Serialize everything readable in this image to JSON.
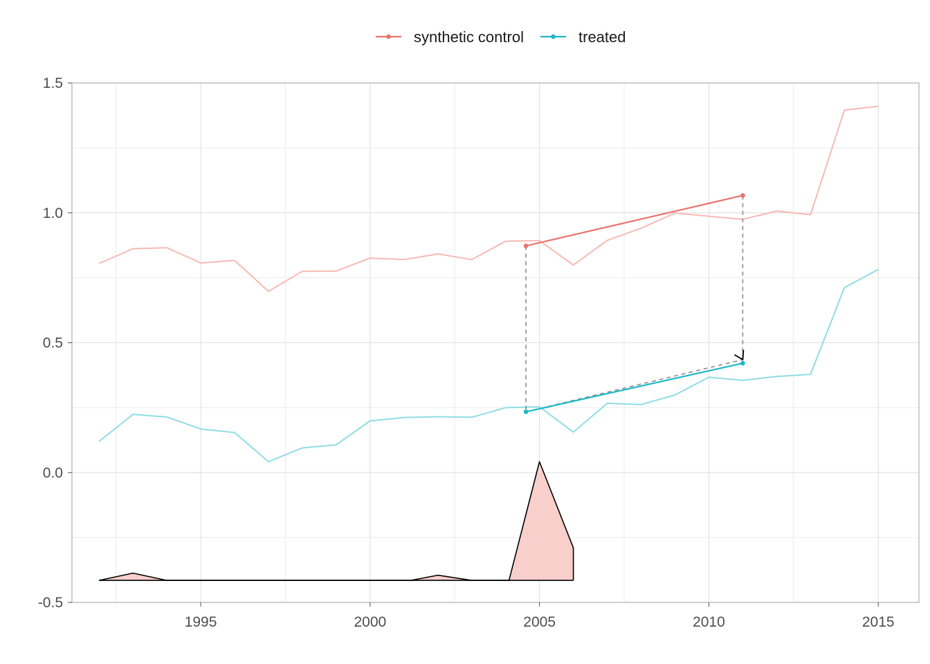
{
  "chart_data": {
    "type": "line",
    "xlim": [
      1991.2,
      2016.2
    ],
    "ylim": [
      -0.5,
      1.5
    ],
    "x_ticks": [
      1995,
      2000,
      2005,
      2010,
      2015
    ],
    "x_tick_labels": [
      "1995",
      "2000",
      "2005",
      "2010",
      "2015"
    ],
    "y_ticks": [
      -0.5,
      0.0,
      0.5,
      1.0,
      1.5
    ],
    "y_tick_labels": [
      "-0.5",
      "0.0",
      "0.5",
      "1.0",
      "1.5"
    ],
    "grid": true,
    "legend": {
      "position": "top",
      "entries": [
        {
          "label": "synthetic control",
          "color": "#e8736c"
        },
        {
          "label": "treated",
          "color": "#1fb7c6"
        }
      ]
    },
    "series": [
      {
        "name": "synthetic control",
        "color": "#f8b9b4",
        "x": [
          1992,
          1993,
          1994,
          1995,
          1996,
          1997,
          1998,
          1999,
          2000,
          2001,
          2002,
          2003,
          2004,
          2005,
          2006,
          2007,
          2008,
          2009,
          2010,
          2011,
          2012,
          2013,
          2014,
          2015
        ],
        "values": [
          0.805,
          0.862,
          0.866,
          0.807,
          0.817,
          0.698,
          0.775,
          0.776,
          0.826,
          0.82,
          0.842,
          0.82,
          0.891,
          0.893,
          0.799,
          0.894,
          0.941,
          0.999,
          0.987,
          0.975,
          1.007,
          0.993,
          1.396,
          1.41
        ]
      },
      {
        "name": "treated",
        "color": "#8fdde3",
        "x": [
          1992,
          1993,
          1994,
          1995,
          1996,
          1997,
          1998,
          1999,
          2000,
          2001,
          2002,
          2003,
          2004,
          2005,
          2006,
          2007,
          2008,
          2009,
          2010,
          2011,
          2012,
          2013,
          2014,
          2015
        ],
        "values": [
          0.12,
          0.224,
          0.214,
          0.168,
          0.154,
          0.042,
          0.095,
          0.107,
          0.199,
          0.212,
          0.215,
          0.213,
          0.25,
          0.253,
          0.156,
          0.267,
          0.262,
          0.299,
          0.367,
          0.355,
          0.37,
          0.378,
          0.712,
          0.782
        ]
      }
    ],
    "trend_segments": [
      {
        "series": "synthetic control",
        "color": "#e8736c",
        "x": [
          2004.6,
          2011.0
        ],
        "values": [
          0.873,
          1.067
        ]
      },
      {
        "series": "treated",
        "color": "#1fb7c6",
        "x": [
          2004.6,
          2011.0
        ],
        "values": [
          0.234,
          0.421
        ]
      }
    ],
    "annotations": {
      "dashed_verticals": [
        {
          "x": 2004.6,
          "from": 0.873,
          "to": 0.234
        },
        {
          "x": 2011.0,
          "from": 1.067,
          "to": 0.435
        }
      ],
      "dashed_diagonal": {
        "x": [
          2004.6,
          2011.0
        ],
        "values": [
          0.234,
          0.435
        ]
      },
      "arrow_tip": {
        "x": 2011.0,
        "value": 0.435
      }
    },
    "density": {
      "baseline": -0.415,
      "fill": "#f9cfcc",
      "stroke": "#000000",
      "x": [
        1992,
        1993,
        1994,
        2001.2,
        2002,
        2003,
        2004.1,
        2005,
        2006,
        2006
      ],
      "values": [
        -0.415,
        -0.387,
        -0.415,
        -0.415,
        -0.395,
        -0.415,
        -0.415,
        0.042,
        -0.29,
        -0.415
      ]
    }
  }
}
